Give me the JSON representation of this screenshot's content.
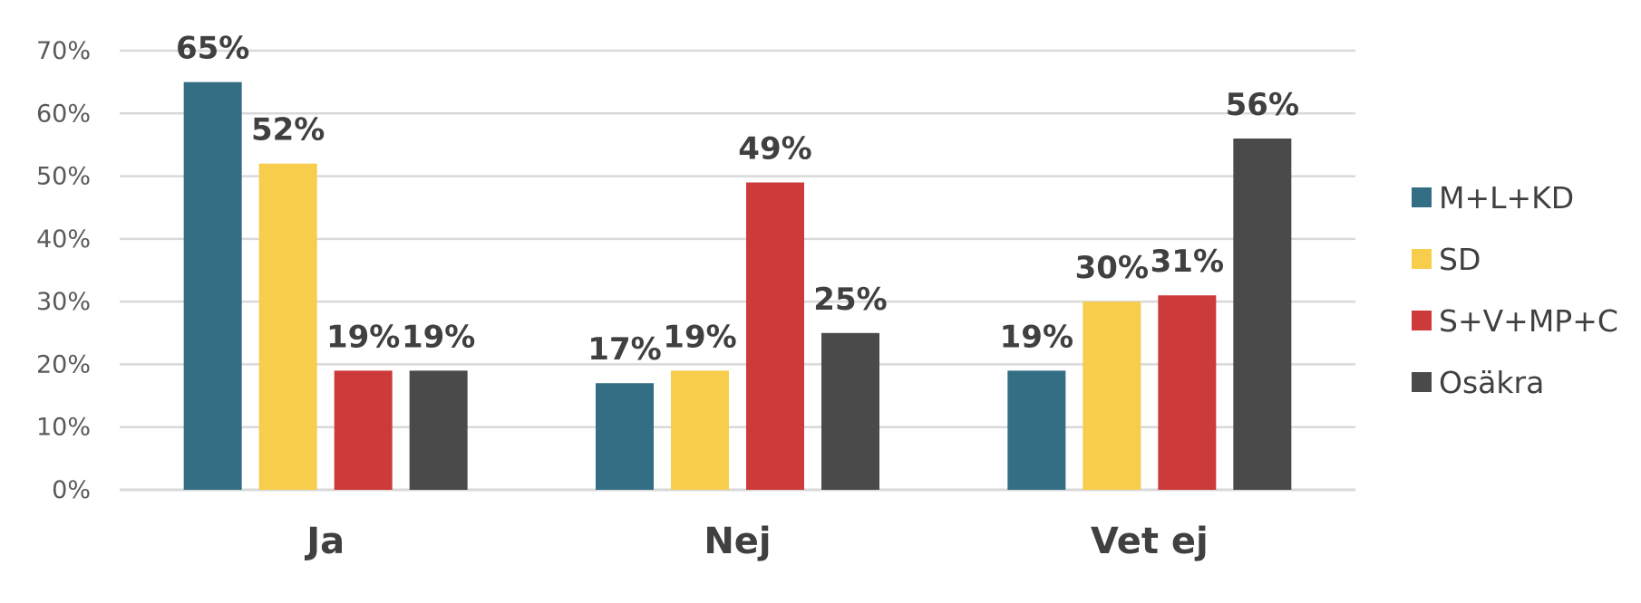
{
  "chart_data": {
    "type": "bar",
    "title": "",
    "xlabel": "",
    "ylabel": "",
    "categories": [
      "Ja",
      "Nej",
      "Vet ej"
    ],
    "series": [
      {
        "name": "M+L+KD",
        "color": "#336e85",
        "values": [
          65,
          17,
          19
        ],
        "labels": [
          "65%",
          "17%",
          "19%"
        ]
      },
      {
        "name": "SD",
        "color": "#f7cd4b",
        "values": [
          52,
          19,
          30
        ],
        "labels": [
          "52%",
          "19%",
          "30%"
        ]
      },
      {
        "name": "S+V+MP+C",
        "color": "#cc3a3a",
        "values": [
          19,
          49,
          31
        ],
        "labels": [
          "19%",
          "49%",
          "31%"
        ]
      },
      {
        "name": "Osäkra",
        "color": "#4a4a4a",
        "values": [
          19,
          25,
          56
        ],
        "labels": [
          "19%",
          "25%",
          "56%"
        ]
      }
    ],
    "ylim": [
      0,
      70
    ],
    "yticks": [
      0,
      10,
      20,
      30,
      40,
      50,
      60,
      70
    ],
    "ytick_labels": [
      "0%",
      "10%",
      "20%",
      "30%",
      "40%",
      "50%",
      "60%",
      "70%"
    ],
    "grid": true,
    "legend": "right"
  }
}
